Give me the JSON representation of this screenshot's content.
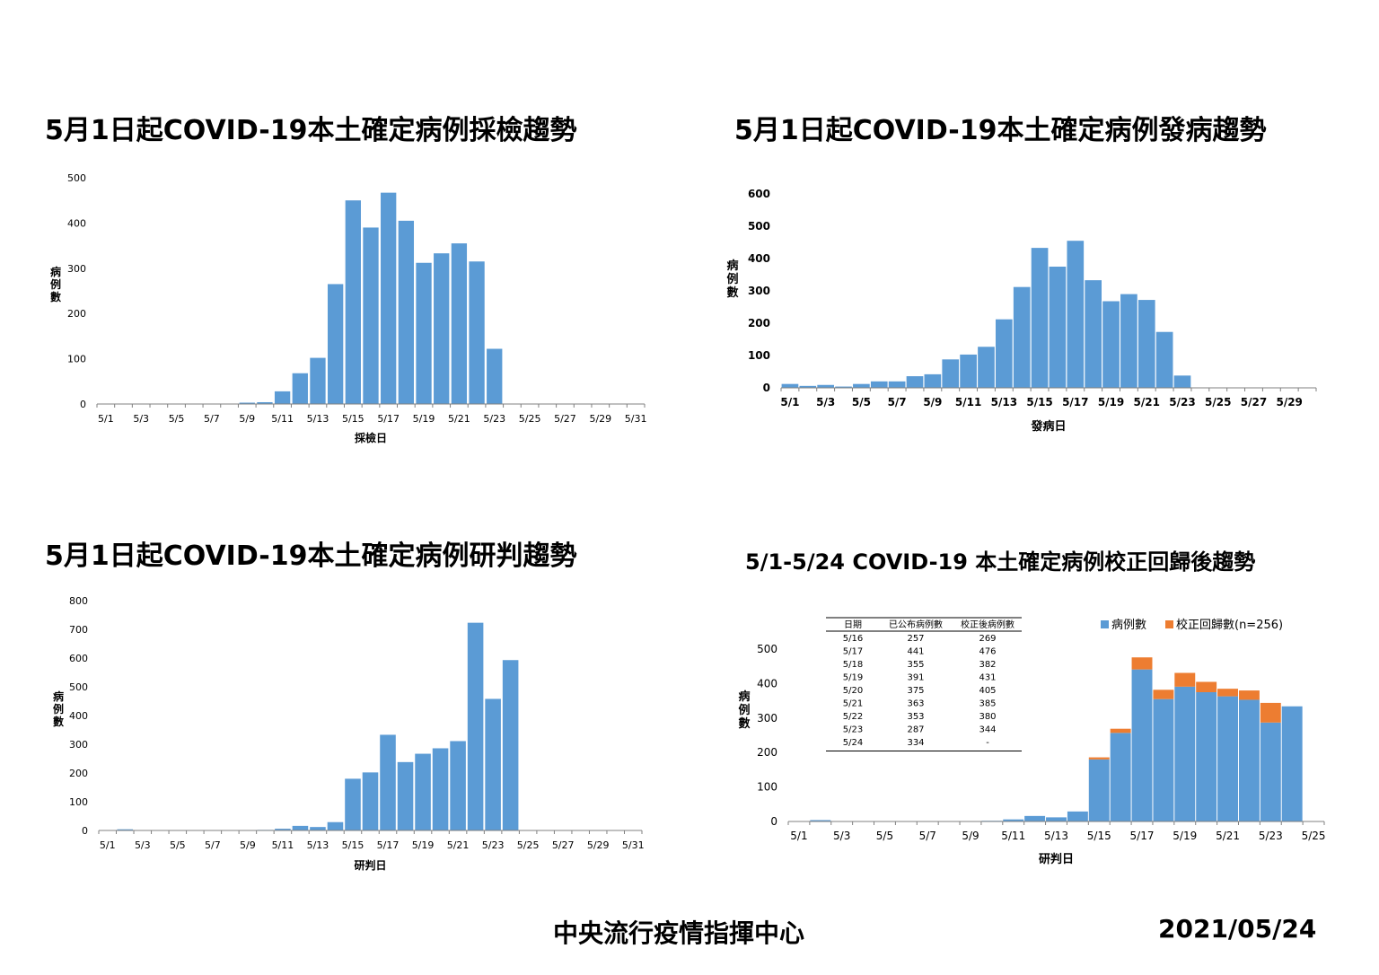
{
  "panels": {
    "p1": {
      "title": "5月1日起COVID-19本土確定病例採檢趨勢"
    },
    "p2": {
      "title": "5月1日起COVID-19本土確定病例發病趨勢"
    },
    "p3": {
      "title": "5月1日起COVID-19本土確定病例研判趨勢"
    },
    "p4": {
      "title": "5/1-5/24 COVID-19 本土確定病例校正回歸後趨勢"
    }
  },
  "footer": {
    "org": "中央流行疫情指揮中心",
    "date": "2021/05/24"
  },
  "colors": {
    "bar_blue": "#5B9BD5",
    "bar_orange": "#ED7D31",
    "axis": "#808080"
  },
  "chart_data": [
    {
      "type": "bar",
      "xlabel": "採檢日",
      "ylabel": "病例數",
      "ylim": [
        0,
        500
      ],
      "yticks": [
        0,
        100,
        200,
        300,
        400,
        500
      ],
      "grid": false,
      "categories": [
        "5/1",
        "5/2",
        "5/3",
        "5/4",
        "5/5",
        "5/6",
        "5/7",
        "5/8",
        "5/9",
        "5/10",
        "5/11",
        "5/12",
        "5/13",
        "5/14",
        "5/15",
        "5/16",
        "5/17",
        "5/18",
        "5/19",
        "5/20",
        "5/21",
        "5/22",
        "5/23",
        "5/24",
        "5/25",
        "5/26",
        "5/27",
        "5/28",
        "5/29",
        "5/30",
        "5/31"
      ],
      "tick_labels": [
        "5/1",
        "5/3",
        "5/5",
        "5/7",
        "5/9",
        "5/11",
        "5/13",
        "5/15",
        "5/17",
        "5/19",
        "5/21",
        "5/23",
        "5/25",
        "5/27",
        "5/29",
        "5/31"
      ],
      "values": [
        0,
        0,
        0,
        0,
        0,
        0,
        0,
        0,
        3,
        4,
        28,
        68,
        102,
        265,
        450,
        390,
        467,
        405,
        312,
        333,
        355,
        315,
        122,
        0,
        0,
        0,
        0,
        0,
        0,
        0,
        0
      ]
    },
    {
      "type": "bar",
      "xlabel": "發病日",
      "ylabel": "病例數",
      "ylim": [
        0,
        600
      ],
      "yticks": [
        0,
        100,
        200,
        300,
        400,
        500,
        600
      ],
      "grid": false,
      "categories": [
        "5/1",
        "5/2",
        "5/3",
        "5/4",
        "5/5",
        "5/6",
        "5/7",
        "5/8",
        "5/9",
        "5/10",
        "5/11",
        "5/12",
        "5/13",
        "5/14",
        "5/15",
        "5/16",
        "5/17",
        "5/18",
        "5/19",
        "5/20",
        "5/21",
        "5/22",
        "5/23",
        "5/24",
        "5/25",
        "5/26",
        "5/27",
        "5/28",
        "5/29",
        "5/30"
      ],
      "tick_labels": [
        "5/1",
        "5/3",
        "5/5",
        "5/7",
        "5/9",
        "5/11",
        "5/13",
        "5/15",
        "5/17",
        "5/19",
        "5/21",
        "5/23",
        "5/25",
        "5/27",
        "5/29"
      ],
      "values": [
        12,
        6,
        9,
        4,
        12,
        20,
        20,
        36,
        42,
        88,
        103,
        127,
        212,
        312,
        433,
        375,
        455,
        333,
        268,
        290,
        272,
        173,
        38,
        0,
        0,
        0,
        0,
        0,
        0,
        0
      ]
    },
    {
      "type": "bar",
      "xlabel": "研判日",
      "ylabel": "病例數",
      "ylim": [
        0,
        800
      ],
      "yticks": [
        0,
        100,
        200,
        300,
        400,
        500,
        600,
        700,
        800
      ],
      "grid": false,
      "categories": [
        "5/1",
        "5/2",
        "5/3",
        "5/4",
        "5/5",
        "5/6",
        "5/7",
        "5/8",
        "5/9",
        "5/10",
        "5/11",
        "5/12",
        "5/13",
        "5/14",
        "5/15",
        "5/16",
        "5/17",
        "5/18",
        "5/19",
        "5/20",
        "5/21",
        "5/22",
        "5/23",
        "5/24",
        "5/25",
        "5/26",
        "5/27",
        "5/28",
        "5/29",
        "5/30",
        "5/31"
      ],
      "tick_labels": [
        "5/1",
        "5/3",
        "5/5",
        "5/7",
        "5/9",
        "5/11",
        "5/13",
        "5/15",
        "5/17",
        "5/19",
        "5/21",
        "5/23",
        "5/25",
        "5/27",
        "5/29",
        "5/31"
      ],
      "values": [
        0,
        4,
        1,
        0,
        0,
        0,
        0,
        0,
        1,
        2,
        6,
        16,
        12,
        29,
        180,
        202,
        333,
        238,
        267,
        286,
        311,
        723,
        458,
        593,
        0,
        0,
        0,
        0,
        0,
        0,
        0
      ]
    },
    {
      "type": "bar",
      "stacked": true,
      "xlabel": "研判日",
      "ylabel": "病例數",
      "ylim": [
        0,
        500
      ],
      "yticks": [
        0,
        100,
        200,
        300,
        400,
        500
      ],
      "grid": false,
      "legend_position": "top-right",
      "categories": [
        "5/1",
        "5/2",
        "5/3",
        "5/4",
        "5/5",
        "5/6",
        "5/7",
        "5/8",
        "5/9",
        "5/10",
        "5/11",
        "5/12",
        "5/13",
        "5/14",
        "5/15",
        "5/16",
        "5/17",
        "5/18",
        "5/19",
        "5/20",
        "5/21",
        "5/22",
        "5/23",
        "5/24",
        "5/25"
      ],
      "tick_labels": [
        "5/1",
        "5/3",
        "5/5",
        "5/7",
        "5/9",
        "5/11",
        "5/13",
        "5/15",
        "5/17",
        "5/19",
        "5/21",
        "5/23",
        "5/25"
      ],
      "series": [
        {
          "name": "病例數",
          "values": [
            0,
            4,
            0,
            0,
            0,
            0,
            0,
            0,
            0,
            2,
            6,
            16,
            12,
            29,
            180,
            257,
            441,
            355,
            391,
            375,
            363,
            353,
            287,
            334,
            0
          ]
        },
        {
          "name": "校正回歸數(n=256)",
          "values": [
            0,
            0,
            0,
            0,
            0,
            0,
            0,
            0,
            0,
            0,
            0,
            0,
            0,
            0,
            6,
            12,
            35,
            27,
            40,
            30,
            22,
            27,
            57,
            0,
            0
          ]
        }
      ],
      "table": {
        "headers": [
          "日期",
          "已公布病例數",
          "校正後病例數"
        ],
        "rows": [
          [
            "5/16",
            "257",
            "269"
          ],
          [
            "5/17",
            "441",
            "476"
          ],
          [
            "5/18",
            "355",
            "382"
          ],
          [
            "5/19",
            "391",
            "431"
          ],
          [
            "5/20",
            "375",
            "405"
          ],
          [
            "5/21",
            "363",
            "385"
          ],
          [
            "5/22",
            "353",
            "380"
          ],
          [
            "5/23",
            "287",
            "344"
          ],
          [
            "5/24",
            "334",
            "-"
          ]
        ]
      }
    }
  ]
}
